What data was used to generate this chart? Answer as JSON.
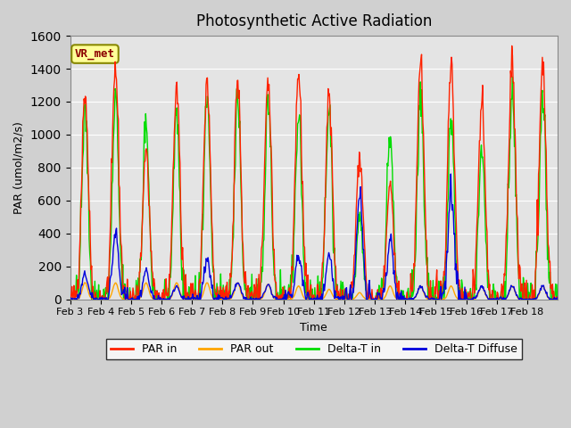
{
  "title": "Photosynthetic Active Radiation",
  "xlabel": "Time",
  "ylabel": "PAR (umol/m2/s)",
  "ylim": [
    0,
    1600
  ],
  "yticks": [
    0,
    200,
    400,
    600,
    800,
    1000,
    1200,
    1400,
    1600
  ],
  "label_box": "VR_met",
  "legend_entries": [
    "PAR in",
    "PAR out",
    "Delta-T in",
    "Delta-T Diffuse"
  ],
  "line_colors": {
    "par_in": "#ff2200",
    "par_out": "#ffa500",
    "delta_t_in": "#00dd00",
    "delta_t_diffuse": "#0000dd"
  },
  "x_tick_labels": [
    "Feb 3",
    "Feb 4",
    "Feb 5",
    "Feb 6",
    "Feb 7",
    "Feb 8",
    "Feb 9",
    "Feb 10",
    "Feb 11",
    "Feb 12",
    "Feb 13",
    "Feb 14",
    "Feb 15",
    "Feb 16",
    "Feb 17",
    "Feb 18"
  ],
  "par_in_peaks": [
    1260,
    1400,
    910,
    1280,
    1330,
    1330,
    1360,
    1390,
    1250,
    870,
    700,
    1450,
    1430,
    1200,
    1450,
    1450
  ],
  "par_out_peaks": [
    100,
    100,
    100,
    100,
    100,
    100,
    90,
    80,
    60,
    40,
    80,
    80,
    80,
    80,
    80,
    80
  ],
  "delta_t_in_peaks": [
    1130,
    1200,
    1090,
    1140,
    1190,
    1220,
    1200,
    1130,
    1140,
    500,
    1030,
    1260,
    1100,
    900,
    1280,
    1280
  ],
  "delta_t_diffuse_peaks": [
    150,
    400,
    175,
    80,
    250,
    100,
    90,
    270,
    260,
    630,
    370,
    80,
    640,
    80,
    80,
    80
  ]
}
